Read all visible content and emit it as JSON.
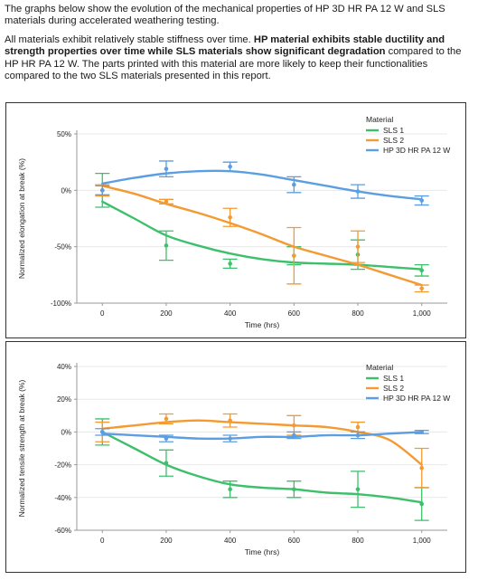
{
  "intro": {
    "para1": "The graphs below show the evolution of the mechanical properties of HP 3D HR PA 12 W and SLS materials during accelerated weathering testing.",
    "para2_a": "All materials exhibit relatively stable stiffness over time. ",
    "para2_b": "HP material exhibits stable ductility and strength properties over time while SLS materials show significant degradation",
    "para2_c": " compared to the HP HR PA 12 W. The parts printed with this material are more likely to keep their functionalities compared to the two SLS materials presented in this report."
  },
  "chart_data": [
    {
      "type": "line",
      "xlabel": "Time (hrs)",
      "ylabel": "Normalized elongation at break (%)",
      "x": [
        0,
        200,
        400,
        600,
        800,
        1000
      ],
      "x_tick_labels": [
        "0",
        "200",
        "400",
        "600",
        "800",
        "1,000"
      ],
      "xlim": [
        -80,
        1080
      ],
      "ylim": [
        -100,
        50
      ],
      "y_ticks": [
        50,
        0,
        -50,
        -100
      ],
      "y_tick_labels": [
        "50%",
        "0%",
        "-50%",
        "-100%"
      ],
      "grid": true,
      "legend": {
        "title": "Material",
        "placement": "top-right"
      },
      "series": [
        {
          "name": "SLS 1",
          "color": "#3dbf6b",
          "points": [
            0,
            -49,
            -65,
            -58,
            -57,
            -71
          ],
          "error": [
            15,
            13,
            4,
            8,
            13,
            5
          ],
          "fit": [
            [
              0,
              -10
            ],
            [
              100,
              -25
            ],
            [
              200,
              -40
            ],
            [
              300,
              -49
            ],
            [
              400,
              -56
            ],
            [
              500,
              -61
            ],
            [
              600,
              -64
            ],
            [
              700,
              -65
            ],
            [
              800,
              -66
            ],
            [
              900,
              -68
            ],
            [
              1000,
              -70
            ]
          ]
        },
        {
          "name": "SLS 2",
          "color": "#f39a32",
          "points": [
            0,
            -10,
            -24,
            -58,
            -50,
            -87
          ],
          "error": [
            5,
            2,
            8,
            25,
            14,
            3
          ],
          "fit": [
            [
              0,
              4
            ],
            [
              100,
              -3
            ],
            [
              200,
              -12
            ],
            [
              300,
              -20
            ],
            [
              400,
              -29
            ],
            [
              500,
              -39
            ],
            [
              600,
              -50
            ],
            [
              700,
              -58
            ],
            [
              800,
              -66
            ],
            [
              900,
              -75
            ],
            [
              1000,
              -84
            ]
          ]
        },
        {
          "name": "HP 3D HR PA 12 W",
          "color": "#5b9ee1",
          "points": [
            0,
            19,
            21,
            5,
            -1,
            -9
          ],
          "error": [
            4,
            7,
            4,
            7,
            6,
            4
          ],
          "fit": [
            [
              0,
              6
            ],
            [
              100,
              11
            ],
            [
              200,
              15
            ],
            [
              300,
              17
            ],
            [
              400,
              17
            ],
            [
              500,
              14
            ],
            [
              600,
              9
            ],
            [
              700,
              4
            ],
            [
              800,
              -1
            ],
            [
              900,
              -5
            ],
            [
              1000,
              -8
            ]
          ]
        }
      ]
    },
    {
      "type": "line",
      "xlabel": "Time (hrs)",
      "ylabel": "Normalized tensile strength at break (%)",
      "x": [
        0,
        200,
        400,
        600,
        800,
        1000
      ],
      "x_tick_labels": [
        "0",
        "200",
        "400",
        "600",
        "800",
        "1,000"
      ],
      "xlim": [
        -80,
        1080
      ],
      "ylim": [
        -60,
        40
      ],
      "y_ticks": [
        40,
        20,
        0,
        -20,
        -40,
        -60
      ],
      "y_tick_labels": [
        "40%",
        "20%",
        "0%",
        "-20%",
        "-40%",
        "-60%"
      ],
      "grid": true,
      "legend": {
        "title": "Material",
        "placement": "top-right"
      },
      "series": [
        {
          "name": "SLS 1",
          "color": "#3dbf6b",
          "points": [
            0,
            -19,
            -35,
            -35,
            -35,
            -44
          ],
          "error": [
            8,
            8,
            5,
            5,
            11,
            10
          ],
          "fit": [
            [
              0,
              0
            ],
            [
              100,
              -10
            ],
            [
              200,
              -20
            ],
            [
              300,
              -27
            ],
            [
              400,
              -32
            ],
            [
              500,
              -34
            ],
            [
              600,
              -35
            ],
            [
              700,
              -37
            ],
            [
              800,
              -38
            ],
            [
              900,
              -40
            ],
            [
              1000,
              -43
            ]
          ]
        },
        {
          "name": "SLS 2",
          "color": "#f39a32",
          "points": [
            0,
            8,
            7,
            4,
            3,
            -22
          ],
          "error": [
            6,
            3,
            4,
            6,
            3,
            12
          ],
          "fit": [
            [
              0,
              2
            ],
            [
              100,
              4
            ],
            [
              200,
              6
            ],
            [
              300,
              7
            ],
            [
              400,
              6
            ],
            [
              500,
              5
            ],
            [
              600,
              4
            ],
            [
              700,
              3
            ],
            [
              800,
              0
            ],
            [
              900,
              -5
            ],
            [
              1000,
              -20
            ]
          ]
        },
        {
          "name": "HP 3D HR PA 12 W",
          "color": "#5b9ee1",
          "points": [
            0,
            -4,
            -4,
            -2,
            -2,
            0
          ],
          "error": [
            2,
            2,
            2,
            2,
            2,
            1
          ],
          "fit": [
            [
              0,
              -1
            ],
            [
              100,
              -2
            ],
            [
              200,
              -3
            ],
            [
              300,
              -4
            ],
            [
              400,
              -4
            ],
            [
              500,
              -3
            ],
            [
              600,
              -3
            ],
            [
              700,
              -2
            ],
            [
              800,
              -2
            ],
            [
              900,
              -1
            ],
            [
              1000,
              0
            ]
          ]
        }
      ]
    }
  ]
}
